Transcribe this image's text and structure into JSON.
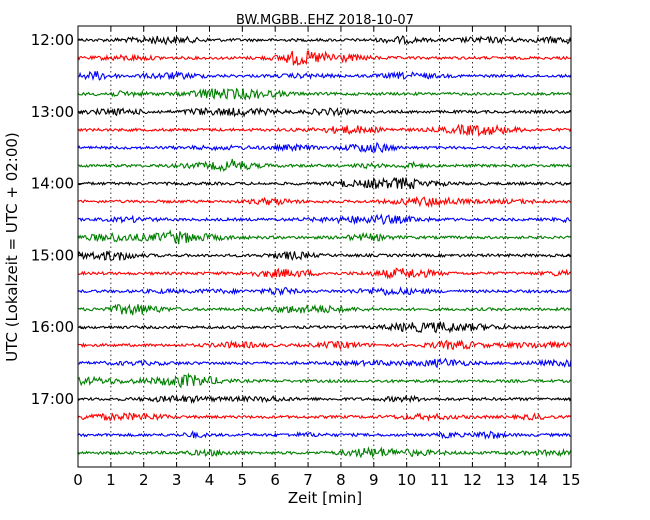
{
  "chart_data": {
    "type": "line",
    "title": "BW.MGBB..EHZ 2018-10-07",
    "xlabel": "Zeit  [min]",
    "ylabel": "UTC (Lokalzeit = UTC + 02:00)",
    "xlim": [
      0,
      15
    ],
    "x_ticks": [
      "0",
      "1",
      "2",
      "3",
      "4",
      "5",
      "6",
      "7",
      "8",
      "9",
      "10",
      "11",
      "12",
      "13",
      "14",
      "15"
    ],
    "y_ticks": [
      "12:00",
      "13:00",
      "14:00",
      "15:00",
      "16:00",
      "17:00"
    ],
    "grid": "vertical dotted",
    "line_colors": [
      "#000000",
      "#ff0000",
      "#0000ff",
      "#008000"
    ],
    "traces": [
      {
        "start": "12:00",
        "color": "#000000"
      },
      {
        "start": "12:15",
        "color": "#ff0000"
      },
      {
        "start": "12:30",
        "color": "#0000ff"
      },
      {
        "start": "12:45",
        "color": "#008000"
      },
      {
        "start": "13:00",
        "color": "#000000"
      },
      {
        "start": "13:15",
        "color": "#ff0000"
      },
      {
        "start": "13:30",
        "color": "#0000ff"
      },
      {
        "start": "13:45",
        "color": "#008000"
      },
      {
        "start": "14:00",
        "color": "#000000"
      },
      {
        "start": "14:15",
        "color": "#ff0000"
      },
      {
        "start": "14:30",
        "color": "#0000ff"
      },
      {
        "start": "14:45",
        "color": "#008000"
      },
      {
        "start": "15:00",
        "color": "#000000"
      },
      {
        "start": "15:15",
        "color": "#ff0000"
      },
      {
        "start": "15:30",
        "color": "#0000ff"
      },
      {
        "start": "15:45",
        "color": "#008000"
      },
      {
        "start": "16:00",
        "color": "#000000"
      },
      {
        "start": "16:15",
        "color": "#ff0000"
      },
      {
        "start": "16:30",
        "color": "#0000ff"
      },
      {
        "start": "16:45",
        "color": "#008000"
      },
      {
        "start": "17:00",
        "color": "#000000"
      },
      {
        "start": "17:15",
        "color": "#ff0000"
      },
      {
        "start": "17:30",
        "color": "#0000ff"
      },
      {
        "start": "17:45",
        "color": "#008000"
      }
    ]
  }
}
